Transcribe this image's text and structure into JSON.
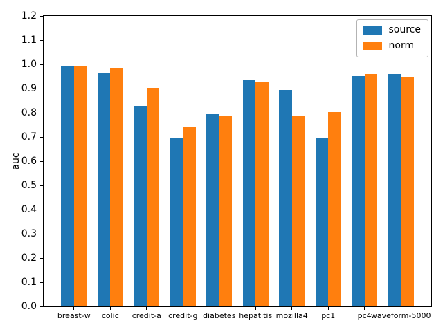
{
  "figure": {
    "background": "#ffffff",
    "spine_color": "#000000"
  },
  "chart_data": {
    "type": "bar",
    "title": "",
    "xlabel": "",
    "ylabel": "auc",
    "categories": [
      "breast-w",
      "colic",
      "credit-a",
      "credit-g",
      "diabetes",
      "hepatitis",
      "mozilla4",
      "pc1",
      "pc4",
      "waveform-5000"
    ],
    "series": [
      {
        "name": "source",
        "color": "#1f77b4",
        "values": [
          0.993,
          0.966,
          0.829,
          0.694,
          0.793,
          0.935,
          0.893,
          0.698,
          0.952,
          0.96
        ]
      },
      {
        "name": "norm",
        "color": "#ff7f0e",
        "values": [
          0.994,
          0.986,
          0.904,
          0.742,
          0.789,
          0.928,
          0.785,
          0.802,
          0.96,
          0.949
        ]
      }
    ],
    "ylim": [
      0,
      1.2
    ],
    "yticks": [
      "0.0",
      "0.1",
      "0.2",
      "0.3",
      "0.4",
      "0.5",
      "0.6",
      "0.7",
      "0.8",
      "0.9",
      "1.0",
      "1.1",
      "1.2"
    ],
    "bar_width": 0.35,
    "grid": false,
    "legend": {
      "position": "upper-right",
      "entries": [
        "source",
        "norm"
      ]
    }
  }
}
